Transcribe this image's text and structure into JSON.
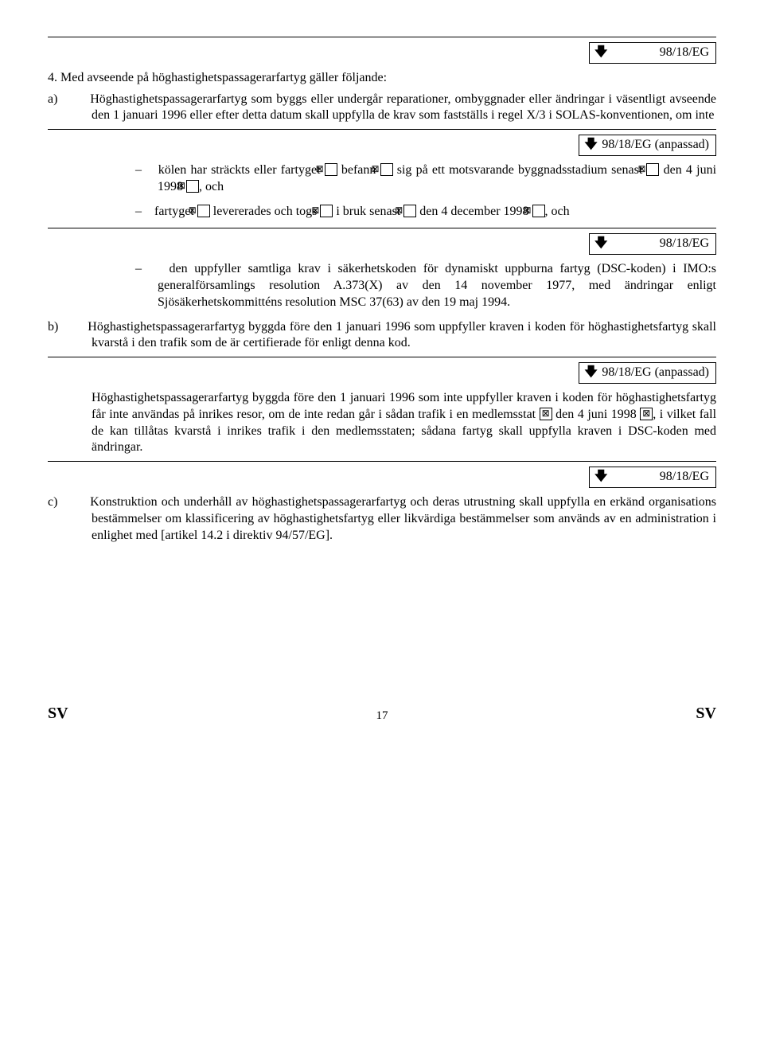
{
  "refs": {
    "plain": "98/18/EG",
    "anpassad": "98/18/EG (anpassad)"
  },
  "icons": {
    "open": "▷",
    "close": "✕"
  },
  "para4": {
    "intro": "4. Med avseende på höghastighetspassagerarfartyg gäller följande:",
    "a_label": "a)",
    "a_text": "Höghastighetspassagerarfartyg som byggs eller undergår reparationer, ombyggnader eller ändringar i väsentligt avseende den 1 januari 1996 eller efter detta datum skall uppfylla de krav som fastställs i regel X/3 i SOLAS-konventionen, om inte",
    "bullet1_pre": "kölen har sträckts eller fartyget ",
    "bullet1_mid": " befann ",
    "bullet1_post1": " sig på ett motsvarande byggnadsstadium senast ",
    "bullet1_date": " den 4 juni 1998 ",
    "bullet1_post2": ", och",
    "bullet2_pre": "fartyget  ",
    "bullet2_mid": " levererades   och   togs ",
    "bullet2_post1": "   i   bruk   senast   ",
    "bullet2_date": " den 4 december 1998 ",
    "bullet2_post2": ", och",
    "bullet3": "den uppfyller samtliga krav i säkerhetskoden för dynamiskt uppburna fartyg (DSC-koden) i IMO:s generalförsamlings resolution A.373(X) av den 14 november 1977, med ändringar enligt Sjösäkerhetskommitténs resolution MSC 37(63) av den 19 maj 1994.",
    "b_label": "b)",
    "b_text": "Höghastighetspassagerarfartyg byggda före den 1 januari 1996 som uppfyller kraven i koden för höghastighetsfartyg skall kvarstå i den trafik som de är certifierade för enligt denna kod.",
    "b2_pre": "Höghastighetspassagerarfartyg byggda före den 1 januari 1996 som inte uppfyller kraven i koden för höghastighetsfartyg får inte användas på inrikes resor, om de inte redan går i sådan trafik i en medlemsstat ",
    "b2_date": " den 4 juni 1998 ",
    "b2_post": ", i vilket fall de kan tillåtas kvarstå i inrikes trafik i den medlemsstaten; sådana fartyg skall uppfylla kraven i DSC-koden med ändringar.",
    "c_label": "c)",
    "c_text": "Konstruktion och underhåll av höghastighetspassagerarfartyg och deras utrustning skall  uppfylla  en  erkänd organisations  bestämmelser  om  klassificering  av höghastighetsfartyg eller likvärdiga bestämmelser som används av en administration i enlighet med [artikel 14.2 i direktiv 94/57/EG]."
  },
  "footer": {
    "left": "SV",
    "page": "17",
    "right": "SV"
  }
}
